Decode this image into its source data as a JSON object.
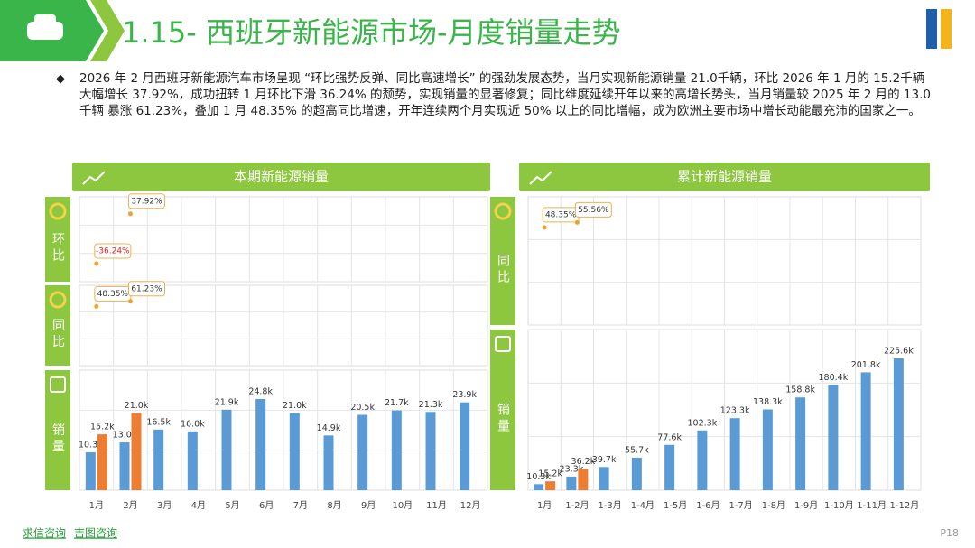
{
  "header": {
    "title": "1.15- 西班牙新能源市场-月度销量走势"
  },
  "summary": "2026 年 2 月西班牙新能源汽车市场呈现 “环比强势反弹、同比高速增长” 的强劲发展态势，当月实现新能源销量 21.0千辆，环比 2026 年 1 月的 15.2千辆 大幅增长 37.92%，成功扭转 1 月环比下滑 36.24% 的颓势，实现销量的显著修复；同比维度延续开年以来的高增长势头，当月销量较 2025 年 2 月的 13.0千辆 暴涨 61.23%，叠加 1 月 48.35% 的超高同比增速，开年连续两个月实现近 50% 以上的同比增幅，成为欧洲主要市场中增长动能最充沛的国家之一。",
  "footer": {
    "sources": [
      "求信咨询",
      "吉图咨询"
    ],
    "page": "P18"
  },
  "chart_data": [
    {
      "type": "bar",
      "title": "本期新能源销量",
      "categories": [
        "1月",
        "2月",
        "3月",
        "4月",
        "5月",
        "6月",
        "7月",
        "8月",
        "9月",
        "10月",
        "11月",
        "12月"
      ],
      "series": [
        {
          "color": "#5b9bd5",
          "values": [
            10.3,
            13.0,
            16.5,
            16.0,
            21.9,
            24.8,
            21.0,
            14.9,
            20.5,
            21.7,
            21.3,
            23.9
          ],
          "value_labels": [
            "10.3k",
            "13.0k",
            "16.5k",
            "16.0k",
            "21.9k",
            "24.8k",
            "21.0k",
            "14.9k",
            "20.5k",
            "21.7k",
            "21.3k",
            "23.9k"
          ]
        },
        {
          "color": "#ed7d31",
          "values": [
            15.2,
            21.0,
            null,
            null,
            null,
            null,
            null,
            null,
            null,
            null,
            null,
            null
          ],
          "value_labels": [
            "15.2k",
            "21.0k",
            null,
            null,
            null,
            null,
            null,
            null,
            null,
            null,
            null,
            null
          ]
        }
      ],
      "panels": [
        {
          "label": "环比",
          "values": [
            -36.24,
            37.92
          ],
          "value_labels": [
            "-36.24%",
            "37.92%"
          ]
        },
        {
          "label": "同比",
          "values": [
            48.35,
            61.23
          ],
          "value_labels": [
            "48.35%",
            "61.23%"
          ]
        }
      ],
      "bars_label": "销量"
    },
    {
      "type": "bar",
      "title": "累计新能源销量",
      "categories": [
        "1月",
        "1-2月",
        "1-3月",
        "1-4月",
        "1-5月",
        "1-6月",
        "1-7月",
        "1-8月",
        "1-9月",
        "1-10月",
        "1-11月",
        "1-12月"
      ],
      "series": [
        {
          "color": "#5b9bd5",
          "values": [
            10.3,
            23.3,
            39.7,
            55.7,
            77.6,
            102.3,
            123.3,
            138.3,
            158.8,
            180.4,
            201.8,
            225.6
          ],
          "value_labels": [
            "10.3k",
            "23.3k",
            "39.7k",
            "55.7k",
            "77.6k",
            "102.3k",
            "123.3k",
            "138.3k",
            "158.8k",
            "180.4k",
            "201.8k",
            "225.6k"
          ]
        },
        {
          "color": "#ed7d31",
          "values": [
            15.2,
            36.2,
            null,
            null,
            null,
            null,
            null,
            null,
            null,
            null,
            null,
            null
          ],
          "value_labels": [
            "15.2k",
            "36.2k",
            null,
            null,
            null,
            null,
            null,
            null,
            null,
            null,
            null,
            null
          ]
        }
      ],
      "panels": [
        {
          "label": "同比",
          "values": [
            48.35,
            55.56
          ],
          "value_labels": [
            "48.35%",
            "55.56%"
          ]
        }
      ],
      "bars_label": "销量"
    }
  ]
}
